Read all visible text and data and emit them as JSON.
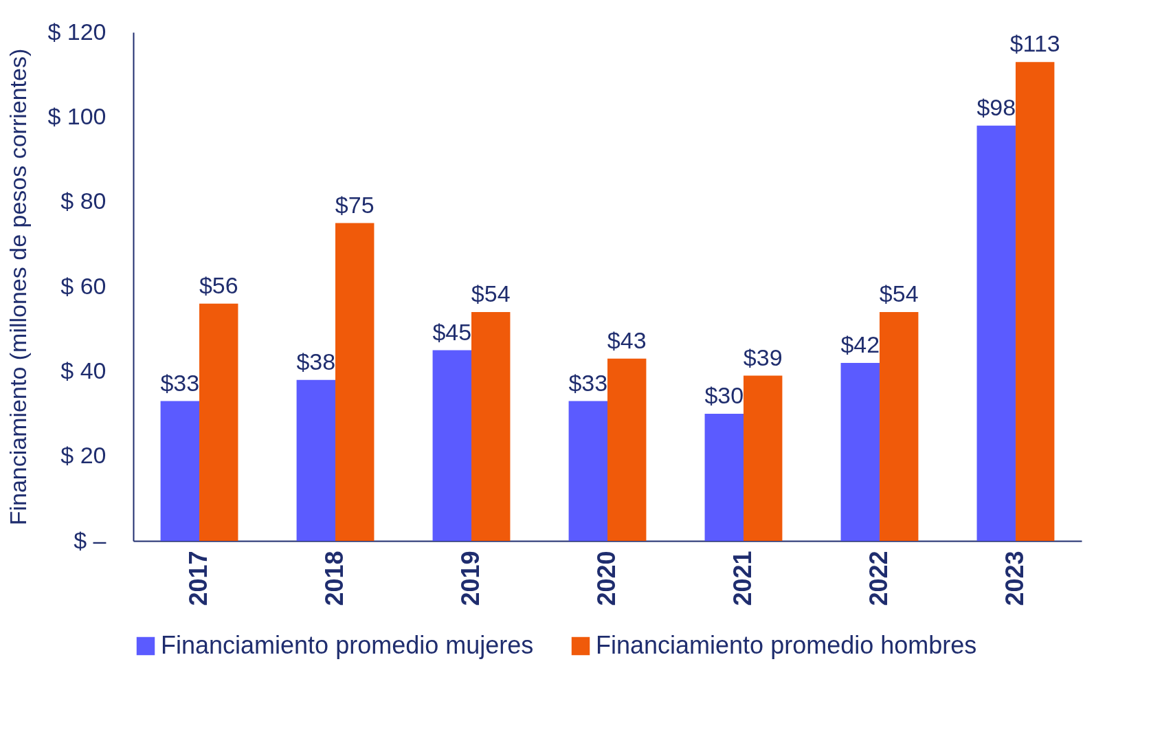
{
  "chart_data": {
    "type": "bar",
    "ylabel": "Financiamiento (millones de pesos corrientes)",
    "categories": [
      "2017",
      "2018",
      "2019",
      "2020",
      "2021",
      "2022",
      "2023"
    ],
    "series": [
      {
        "name": "Financiamiento promedio mujeres",
        "color": "#5b5bff",
        "values": [
          33,
          38,
          45,
          33,
          30,
          42,
          98
        ],
        "value_labels": [
          "$33",
          "$38",
          "$45",
          "$33",
          "$30",
          "$42",
          "$98"
        ]
      },
      {
        "name": "Financiamiento promedio hombres",
        "color": "#f05a0a",
        "values": [
          56,
          75,
          54,
          43,
          39,
          54,
          113
        ],
        "value_labels": [
          "$56",
          "$75",
          "$54",
          "$43",
          "$39",
          "$54",
          "$113"
        ]
      }
    ],
    "ylim": [
      0,
      120
    ],
    "yticks": [
      {
        "value": 0,
        "label": "$ –"
      },
      {
        "value": 20,
        "label": "$ 20"
      },
      {
        "value": 40,
        "label": "$ 40"
      },
      {
        "value": 60,
        "label": "$ 60"
      },
      {
        "value": 80,
        "label": "$ 80"
      },
      {
        "value": 100,
        "label": "$ 100"
      },
      {
        "value": 120,
        "label": "$ 120"
      }
    ],
    "grid": false,
    "legend": "bottom"
  }
}
